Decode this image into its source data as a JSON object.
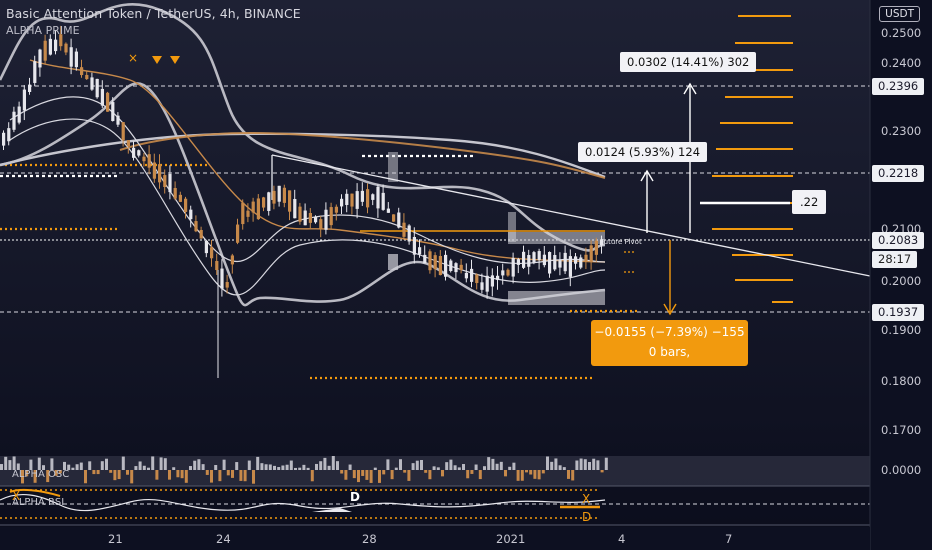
{
  "header": {
    "title": "Basic Attention Token / TetherUS, 4h, BINANCE",
    "indicator": "ALPHA PRIME",
    "currency_button": "USDT"
  },
  "price_axis": {
    "ticks": [
      "0.2500",
      "0.2400",
      "0.2300",
      "0.2100",
      "0.2000",
      "0.1900",
      "0.1800",
      "0.1700"
    ]
  },
  "price_tags": {
    "level_high": "0.2396",
    "level_mid": "0.2218",
    "current": "0.2083",
    "countdown": "28:17",
    "level_low": "0.1937",
    "osc_zero": "0.0000"
  },
  "time_axis": {
    "labels": [
      "21",
      "24",
      "28",
      "2021",
      "4",
      "7"
    ]
  },
  "measure_boxes": {
    "big_up": "0.0302 (14.41%) 302",
    "small_up": "0.0124 (5.93%) 124",
    "down_line1": "−0.0155 (−7.39%) −155",
    "down_line2": "0 bars,",
    "target_label": ".22",
    "pivot_label": "Future Pivot"
  },
  "panels": {
    "osc_label": "ALPHA OSC",
    "osc2_label": "ALPHA RSI",
    "markers": [
      "X",
      "D",
      "D",
      "X"
    ]
  },
  "colors": {
    "background": "#0d1021",
    "accent_orange": "#f29a0e",
    "band_gray": "#b4b4bc",
    "candle_up": "#e6e6ec",
    "candle_orange": "#c7894a"
  },
  "chart_data": {
    "type": "candlestick",
    "symbol": "BATUSDT",
    "timeframe": "4h",
    "ylim": [
      0.165,
      0.256
    ],
    "price_levels": [
      0.2396,
      0.2218,
      0.2083,
      0.1937
    ],
    "last_price": 0.2083,
    "measurements": [
      {
        "change": 0.0302,
        "percent": 14.41,
        "ticks": 302
      },
      {
        "change": 0.0124,
        "percent": 5.93,
        "ticks": 124
      },
      {
        "change": -0.0155,
        "percent": -7.39,
        "ticks": -155,
        "bars": 0
      }
    ]
  }
}
